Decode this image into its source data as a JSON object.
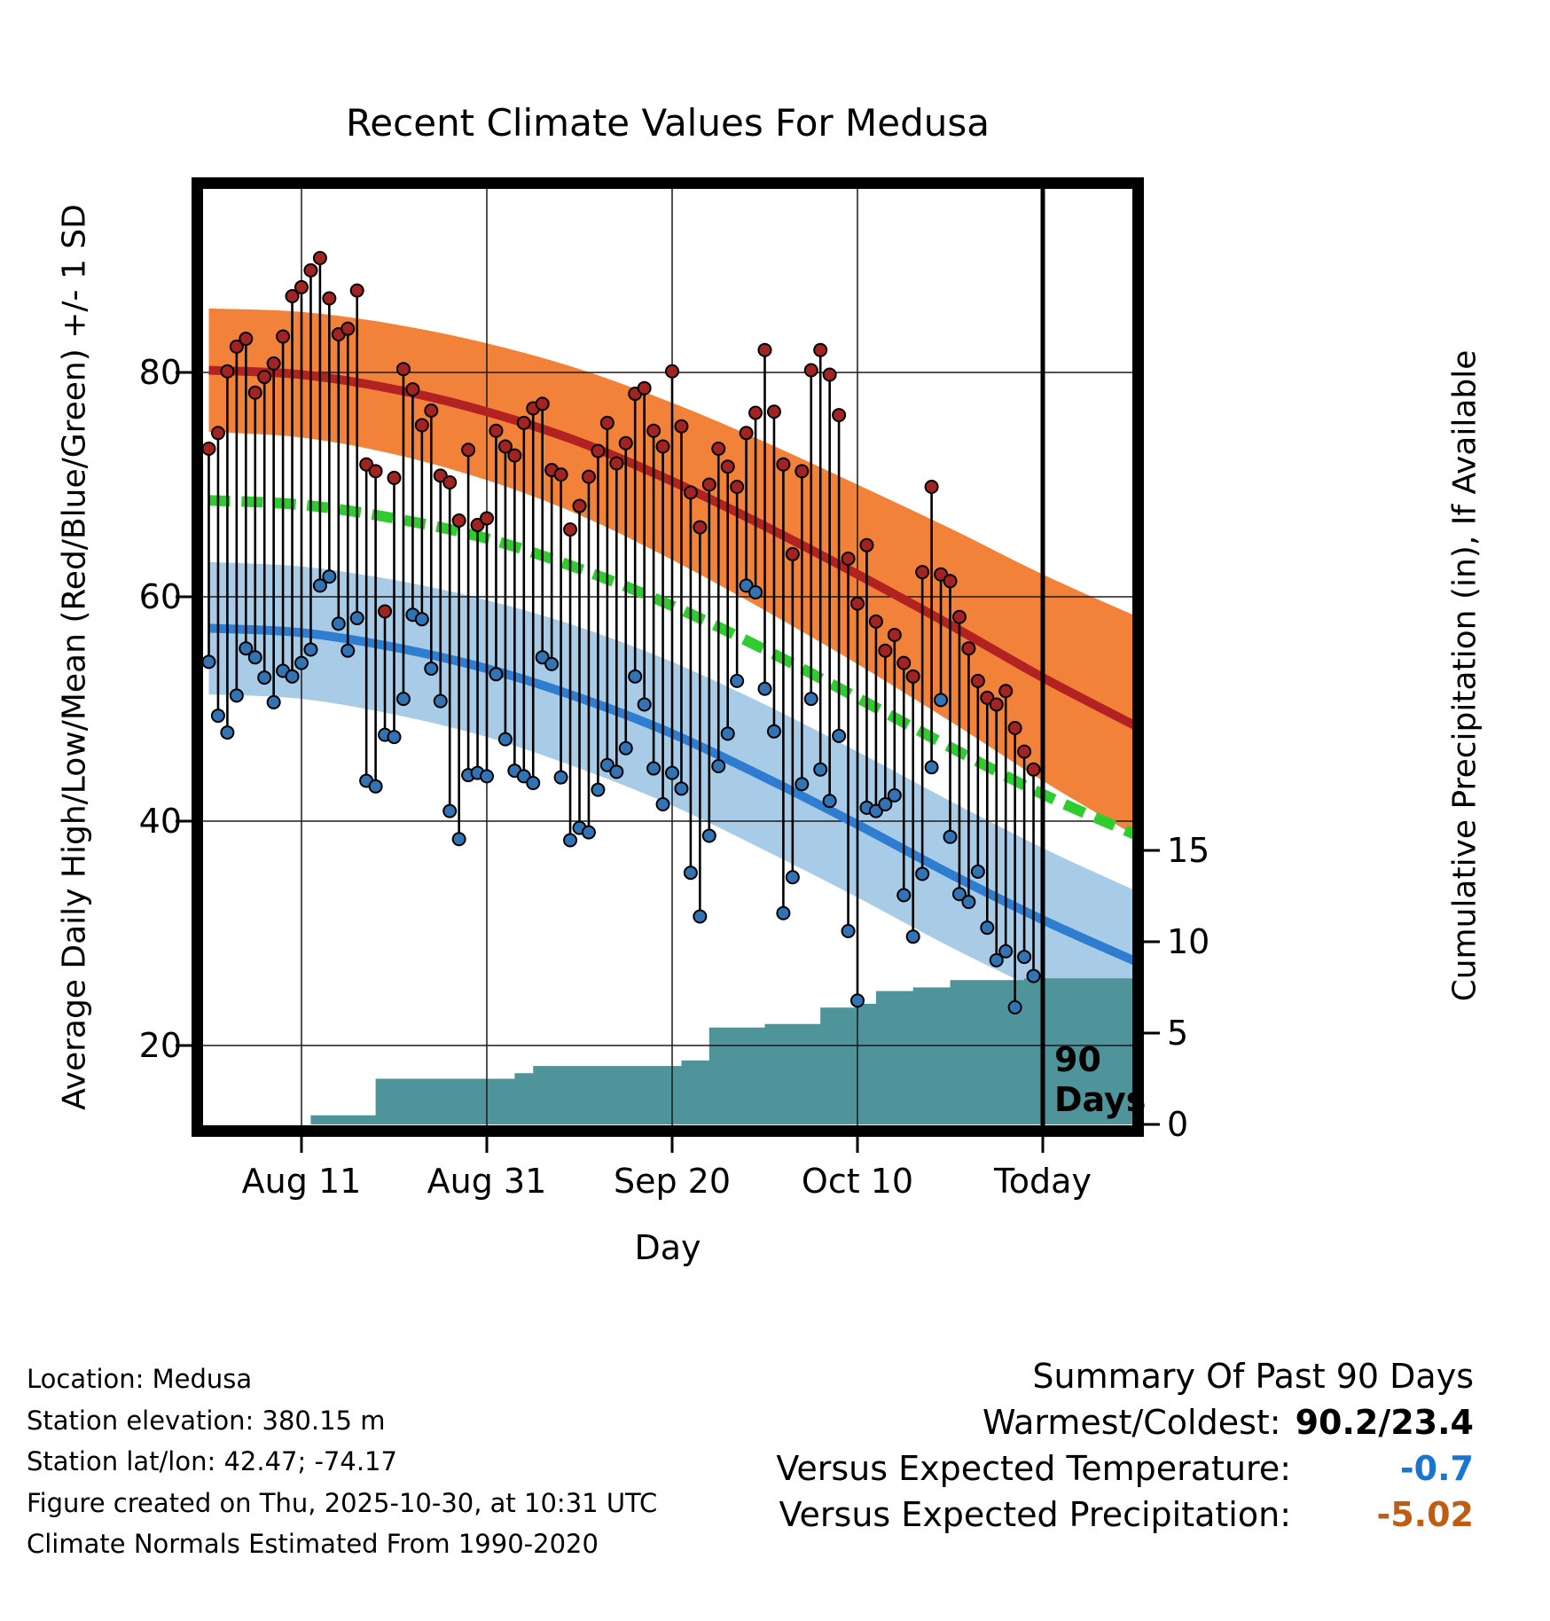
{
  "title": "Recent Climate Values For Medusa",
  "axes": {
    "x_label": "Day",
    "left_label": "Average Daily High/Low/Mean (Red/Blue/Green) +/- 1 SD",
    "right_label": "Cumulative Precipitation (in), If Available",
    "left_ticks": [
      20,
      40,
      60,
      80
    ],
    "right_ticks": [
      0,
      5,
      10,
      15
    ],
    "x_ticks": [
      {
        "label": "Aug 11",
        "day": 10
      },
      {
        "label": "Aug 31",
        "day": 30
      },
      {
        "label": "Sep 20",
        "day": 50
      },
      {
        "label": "Oct 10",
        "day": 70
      },
      {
        "label": "Today",
        "day": 90
      }
    ]
  },
  "annotations": {
    "today_day": 90,
    "today_label_line1": "90",
    "today_label_line2": "Days"
  },
  "colors": {
    "high_band": "#F2823A",
    "high_line": "#B22222",
    "mean_line": "#2FCC2F",
    "low_band": "#A8CBE8",
    "low_line": "#2E7DD1",
    "precip_fill": "#4F949B",
    "high_dot": "#A32222",
    "low_dot": "#3173B5",
    "stem": "#000000",
    "grid": "#1a1a1a",
    "temp_anomaly_value": "#1a75d2",
    "precip_anomaly_value": "#c05d15"
  },
  "chart_data": {
    "type": "line",
    "title": "Recent Climate Values For Medusa",
    "xlabel": "Day",
    "ylabel_left": "Average Daily High/Low/Mean (Red/Blue/Green) +/- 1 SD",
    "ylabel_right": "Cumulative Precipitation (in), If Available",
    "x_unit": "day index: 0 = Aug 1, 10 = Aug 11, 30 = Aug 31, 50 = Sep 20, 70 = Oct 10, 90 = Today (Oct 30)",
    "xlim_days": [
      -0.6,
      99.7
    ],
    "ylim_temp": [
      13,
      96
    ],
    "ylim_precip": [
      0,
      16.6
    ],
    "grid": true,
    "normals": {
      "days": [
        0,
        10,
        20,
        30,
        40,
        50,
        60,
        70,
        80,
        90,
        100
      ],
      "high_mean": [
        80.2,
        79.8,
        78.5,
        76.5,
        73.8,
        70.3,
        66.3,
        62.0,
        57.5,
        52.8,
        48.5
      ],
      "high_sd": [
        5.5,
        5.6,
        5.8,
        6.1,
        6.5,
        7.0,
        7.5,
        8.0,
        8.6,
        9.2,
        9.8
      ],
      "mean": [
        68.6,
        68.2,
        67.0,
        65.2,
        62.5,
        59.2,
        55.3,
        51.0,
        46.6,
        42.4,
        38.8
      ],
      "low_mean": [
        57.2,
        56.8,
        55.5,
        53.6,
        51.0,
        47.8,
        43.9,
        39.7,
        35.3,
        31.2,
        27.5
      ],
      "low_sd": [
        5.9,
        5.9,
        6.0,
        6.1,
        6.3,
        6.4,
        6.5,
        6.5,
        6.5,
        6.4,
        6.3
      ]
    },
    "daily": {
      "first_day": 0,
      "high": [
        73.2,
        74.6,
        80.1,
        82.3,
        83.0,
        78.2,
        79.6,
        80.8,
        83.2,
        86.8,
        87.6,
        89.1,
        90.2,
        86.6,
        83.4,
        83.9,
        87.3,
        71.8,
        71.2,
        58.7,
        70.6,
        80.3,
        78.5,
        75.3,
        76.6,
        70.8,
        70.2,
        66.8,
        73.1,
        66.4,
        67.0,
        74.8,
        73.4,
        72.6,
        75.5,
        76.8,
        77.2,
        71.3,
        70.9,
        66.0,
        68.1,
        70.7,
        73.0,
        75.5,
        71.9,
        73.7,
        78.1,
        78.6,
        74.8,
        73.4,
        80.1,
        75.2,
        69.3,
        66.2,
        70.0,
        73.2,
        71.6,
        69.8,
        74.6,
        76.4,
        82.0,
        76.5,
        71.8,
        63.8,
        71.2,
        80.2,
        82.0,
        79.8,
        76.2,
        63.4,
        59.4,
        64.6,
        57.8,
        55.2,
        56.6,
        54.1,
        52.9,
        62.2,
        69.8,
        62.0,
        61.4,
        58.2,
        55.4,
        52.5,
        51.0,
        50.4,
        51.6,
        48.3,
        46.2,
        44.6
      ],
      "low": [
        54.2,
        49.4,
        47.9,
        51.2,
        55.4,
        54.6,
        52.8,
        50.6,
        53.4,
        52.9,
        54.1,
        55.3,
        61.0,
        61.8,
        57.6,
        55.2,
        58.1,
        43.6,
        43.1,
        47.7,
        47.5,
        50.9,
        58.4,
        58.0,
        53.6,
        50.7,
        40.9,
        38.4,
        44.1,
        44.3,
        44.0,
        53.1,
        47.3,
        44.5,
        44.0,
        43.4,
        54.6,
        54.0,
        43.9,
        38.3,
        39.4,
        39.0,
        42.8,
        45.0,
        44.4,
        46.5,
        52.9,
        50.4,
        44.7,
        41.5,
        44.3,
        42.9,
        35.4,
        31.5,
        38.7,
        44.9,
        47.8,
        52.5,
        61.0,
        60.4,
        51.8,
        48.0,
        31.8,
        35.0,
        43.3,
        50.9,
        44.6,
        41.8,
        47.6,
        30.2,
        24.0,
        41.2,
        40.9,
        41.5,
        42.3,
        33.4,
        29.7,
        35.3,
        44.8,
        50.8,
        38.6,
        33.5,
        32.8,
        35.5,
        30.5,
        27.6,
        28.4,
        23.4,
        27.9,
        26.2
      ]
    },
    "precip_cumulative_steps": [
      [
        0,
        0
      ],
      [
        11,
        0
      ],
      [
        11,
        0.5
      ],
      [
        18,
        0.5
      ],
      [
        18,
        2.5
      ],
      [
        33,
        2.5
      ],
      [
        33,
        2.8
      ],
      [
        35,
        2.8
      ],
      [
        35,
        3.2
      ],
      [
        51,
        3.2
      ],
      [
        51,
        3.5
      ],
      [
        54,
        3.5
      ],
      [
        54,
        5.3
      ],
      [
        60,
        5.3
      ],
      [
        60,
        5.5
      ],
      [
        66,
        5.5
      ],
      [
        66,
        6.4
      ],
      [
        70,
        6.4
      ],
      [
        70,
        6.6
      ],
      [
        72,
        6.6
      ],
      [
        72,
        7.3
      ],
      [
        76,
        7.3
      ],
      [
        76,
        7.5
      ],
      [
        80,
        7.5
      ],
      [
        80,
        7.9
      ],
      [
        88,
        7.9
      ],
      [
        88,
        8.0
      ],
      [
        100,
        8.0
      ]
    ]
  },
  "footer_left": {
    "lines": [
      "Location: Medusa",
      "Station elevation: 380.15 m",
      "Station lat/lon: 42.47; -74.17",
      "Figure created on Thu, 2025-10-30, at 10:31 UTC",
      "Climate Normals Estimated From 1990-2020"
    ]
  },
  "summary": {
    "title": "Summary Of Past 90 Days",
    "rows": [
      {
        "label": "Warmest/Coldest:",
        "value": "90.2/23.4",
        "color": "#000000"
      },
      {
        "label": "Versus Expected Temperature:",
        "value": "-0.7",
        "color": "#1a75d2"
      },
      {
        "label": "Versus Expected Precipitation:",
        "value": "-5.02",
        "color": "#c05d15"
      }
    ]
  }
}
